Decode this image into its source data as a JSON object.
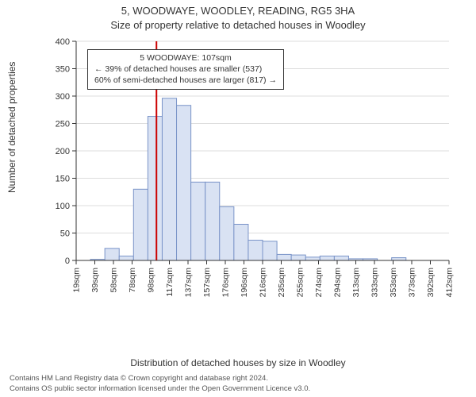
{
  "title_line1": "5, WOODWAYE, WOODLEY, READING, RG5 3HA",
  "title_line2": "Size of property relative to detached houses in Woodley",
  "ylabel": "Number of detached properties",
  "xlabel": "Distribution of detached houses by size in Woodley",
  "footer_line1": "Contains HM Land Registry data © Crown copyright and database right 2024.",
  "footer_line2": "Contains OS public sector information licensed under the Open Government Licence v3.0.",
  "chart": {
    "type": "histogram",
    "ylim": [
      0,
      400
    ],
    "ytick_step": 50,
    "xticks": [
      "19sqm",
      "39sqm",
      "58sqm",
      "78sqm",
      "98sqm",
      "117sqm",
      "137sqm",
      "157sqm",
      "176sqm",
      "196sqm",
      "216sqm",
      "235sqm",
      "255sqm",
      "274sqm",
      "294sqm",
      "313sqm",
      "333sqm",
      "353sqm",
      "373sqm",
      "392sqm",
      "412sqm"
    ],
    "values": [
      0,
      2,
      22,
      8,
      130,
      263,
      296,
      283,
      143,
      143,
      98,
      66,
      37,
      35,
      11,
      10,
      6,
      8,
      8,
      3,
      3,
      0,
      5,
      0,
      0,
      0
    ],
    "bar_fill": "#d9e2f3",
    "bar_stroke": "#7a94c8",
    "background_color": "#ffffff",
    "grid_color": "#dddddd",
    "axis_color": "#333333",
    "reference_line_x_index": 5.6,
    "reference_line_color": "#cc0000"
  },
  "annotation": {
    "line1": "5 WOODWAYE: 107sqm",
    "line2": "← 39% of detached houses are smaller (537)",
    "line3": "60% of semi-detached houses are larger (817) →"
  },
  "layout": {
    "title_fontsize": 13,
    "axis_label_fontsize": 12,
    "tick_fontsize": 11,
    "annot_fontsize": 10.5
  }
}
